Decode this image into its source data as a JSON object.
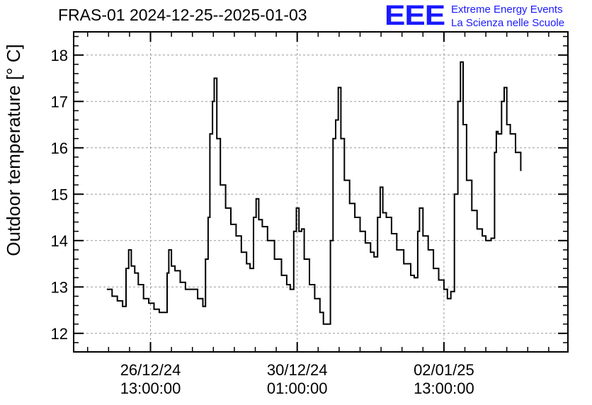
{
  "header": {
    "title": "FRAS-01 2024-12-25--2025-01-03",
    "logo_text": "EEE",
    "org_line1": "Extreme Energy Events",
    "org_line2": "La Scienza nelle Scuole"
  },
  "colors": {
    "brand": "#1a1aff",
    "line": "#000000",
    "grid": "#999999"
  },
  "chart_data": {
    "type": "line",
    "title": "FRAS-01 2024-12-25--2025-01-03",
    "xlabel": "",
    "ylabel": "Outdoor temperature [° C]",
    "ylim": [
      11.6,
      18.5
    ],
    "yticks": [
      12,
      13,
      14,
      15,
      16,
      17,
      18
    ],
    "xlim": [
      "2024-12-24T17:00",
      "2025-01-05T12:00"
    ],
    "xticks": [
      {
        "x": "2024-12-26T13:00",
        "line1": "26/12/24",
        "line2": "13:00:00"
      },
      {
        "x": "2024-12-30T01:00",
        "line1": "30/12/24",
        "line2": "01:00:00"
      },
      {
        "x": "2025-01-02T13:00",
        "line1": "02/01/25",
        "line2": "13:00:00"
      }
    ],
    "grid": true,
    "series": [
      {
        "points": [
          [
            "2024-12-25T12:00",
            12.95
          ],
          [
            "2024-12-25T15:00",
            12.8
          ],
          [
            "2024-12-25T18:00",
            12.7
          ],
          [
            "2024-12-25T21:00",
            12.58
          ],
          [
            "2024-12-25T22:00",
            12.58
          ],
          [
            "2024-12-25T23:00",
            13.4
          ],
          [
            "2024-12-26T00:30",
            13.8
          ],
          [
            "2024-12-26T02:00",
            13.45
          ],
          [
            "2024-12-26T04:00",
            13.3
          ],
          [
            "2024-12-26T06:00",
            13.05
          ],
          [
            "2024-12-26T09:00",
            12.75
          ],
          [
            "2024-12-26T12:00",
            12.65
          ],
          [
            "2024-12-26T15:00",
            12.52
          ],
          [
            "2024-12-26T18:00",
            12.45
          ],
          [
            "2024-12-26T21:00",
            12.45
          ],
          [
            "2024-12-26T22:30",
            13.3
          ],
          [
            "2024-12-26T23:30",
            13.8
          ],
          [
            "2024-12-27T01:00",
            13.45
          ],
          [
            "2024-12-27T03:00",
            13.35
          ],
          [
            "2024-12-27T06:00",
            13.1
          ],
          [
            "2024-12-27T09:00",
            12.95
          ],
          [
            "2024-12-27T13:00",
            12.95
          ],
          [
            "2024-12-27T16:00",
            12.75
          ],
          [
            "2024-12-27T19:00",
            12.58
          ],
          [
            "2024-12-27T20:30",
            13.6
          ],
          [
            "2024-12-27T22:00",
            14.5
          ],
          [
            "2024-12-27T23:00",
            16.3
          ],
          [
            "2024-12-28T00:30",
            17.0
          ],
          [
            "2024-12-28T01:30",
            17.5
          ],
          [
            "2024-12-28T03:00",
            16.2
          ],
          [
            "2024-12-28T05:00",
            15.2
          ],
          [
            "2024-12-28T08:00",
            14.7
          ],
          [
            "2024-12-28T11:00",
            14.35
          ],
          [
            "2024-12-28T14:00",
            14.1
          ],
          [
            "2024-12-28T17:00",
            13.75
          ],
          [
            "2024-12-28T20:00",
            13.5
          ],
          [
            "2024-12-28T22:00",
            13.4
          ],
          [
            "2024-12-29T00:00",
            14.5
          ],
          [
            "2024-12-29T01:30",
            14.9
          ],
          [
            "2024-12-29T03:00",
            14.45
          ],
          [
            "2024-12-29T05:00",
            14.3
          ],
          [
            "2024-12-29T08:00",
            14.0
          ],
          [
            "2024-12-29T12:00",
            13.6
          ],
          [
            "2024-12-29T16:00",
            13.25
          ],
          [
            "2024-12-29T19:00",
            13.05
          ],
          [
            "2024-12-29T21:00",
            12.95
          ],
          [
            "2024-12-29T23:00",
            14.2
          ],
          [
            "2024-12-30T00:30",
            14.7
          ],
          [
            "2024-12-30T02:00",
            14.2
          ],
          [
            "2024-12-30T03:30",
            14.25
          ],
          [
            "2024-12-30T05:00",
            13.6
          ],
          [
            "2024-12-30T08:00",
            13.05
          ],
          [
            "2024-12-30T11:00",
            12.75
          ],
          [
            "2024-12-30T14:00",
            12.45
          ],
          [
            "2024-12-30T16:00",
            12.2
          ],
          [
            "2024-12-30T17:30",
            12.2
          ],
          [
            "2024-12-30T20:00",
            14.0
          ],
          [
            "2024-12-30T21:30",
            16.2
          ],
          [
            "2024-12-30T23:00",
            16.6
          ],
          [
            "2024-12-31T00:30",
            17.3
          ],
          [
            "2024-12-31T02:00",
            16.2
          ],
          [
            "2024-12-31T04:00",
            15.3
          ],
          [
            "2024-12-31T07:00",
            14.8
          ],
          [
            "2024-12-31T10:00",
            14.5
          ],
          [
            "2024-12-31T13:00",
            14.2
          ],
          [
            "2024-12-31T16:00",
            13.95
          ],
          [
            "2024-12-31T19:00",
            13.75
          ],
          [
            "2024-12-31T21:00",
            13.65
          ],
          [
            "2024-12-31T23:00",
            14.5
          ],
          [
            "2025-01-01T00:30",
            15.15
          ],
          [
            "2025-01-01T02:00",
            14.6
          ],
          [
            "2025-01-01T04:00",
            14.5
          ],
          [
            "2025-01-01T07:00",
            14.15
          ],
          [
            "2025-01-01T10:00",
            13.8
          ],
          [
            "2025-01-01T14:00",
            13.5
          ],
          [
            "2025-01-01T18:00",
            13.25
          ],
          [
            "2025-01-01T20:00",
            13.2
          ],
          [
            "2025-01-01T22:00",
            14.2
          ],
          [
            "2025-01-01T23:00",
            14.7
          ],
          [
            "2025-01-02T01:00",
            14.1
          ],
          [
            "2025-01-02T04:00",
            13.8
          ],
          [
            "2025-01-02T07:00",
            13.4
          ],
          [
            "2025-01-02T10:00",
            13.15
          ],
          [
            "2025-01-02T13:00",
            12.95
          ],
          [
            "2025-01-02T15:00",
            12.75
          ],
          [
            "2025-01-02T17:00",
            12.9
          ],
          [
            "2025-01-02T19:00",
            15.0
          ],
          [
            "2025-01-02T21:00",
            17.0
          ],
          [
            "2025-01-02T22:30",
            17.85
          ],
          [
            "2025-01-03T00:00",
            16.5
          ],
          [
            "2025-01-03T02:00",
            15.3
          ],
          [
            "2025-01-03T05:00",
            14.65
          ],
          [
            "2025-01-03T08:00",
            14.25
          ],
          [
            "2025-01-03T11:00",
            14.1
          ],
          [
            "2025-01-03T13:00",
            14.0
          ],
          [
            "2025-01-03T16:00",
            14.05
          ],
          [
            "2025-01-03T18:00",
            15.9
          ],
          [
            "2025-01-03T19:00",
            16.35
          ],
          [
            "2025-01-03T20:00",
            16.3
          ],
          [
            "2025-01-03T22:00",
            17.0
          ],
          [
            "2025-01-03T23:30",
            17.3
          ],
          [
            "2025-01-04T01:00",
            16.5
          ],
          [
            "2025-01-04T03:00",
            16.3
          ],
          [
            "2025-01-04T06:00",
            15.9
          ],
          [
            "2025-01-04T09:00",
            15.5
          ]
        ]
      }
    ]
  }
}
